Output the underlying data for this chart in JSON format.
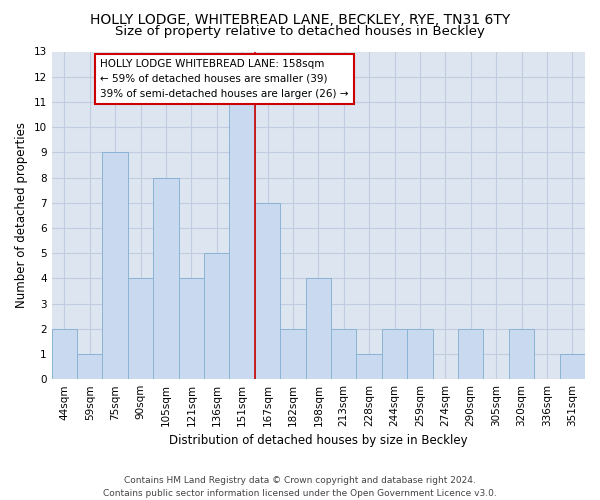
{
  "title": "HOLLY LODGE, WHITEBREAD LANE, BECKLEY, RYE, TN31 6TY",
  "subtitle": "Size of property relative to detached houses in Beckley",
  "xlabel": "Distribution of detached houses by size in Beckley",
  "ylabel": "Number of detached properties",
  "categories": [
    "44sqm",
    "59sqm",
    "75sqm",
    "90sqm",
    "105sqm",
    "121sqm",
    "136sqm",
    "151sqm",
    "167sqm",
    "182sqm",
    "198sqm",
    "213sqm",
    "228sqm",
    "244sqm",
    "259sqm",
    "274sqm",
    "290sqm",
    "305sqm",
    "320sqm",
    "336sqm",
    "351sqm"
  ],
  "values": [
    2,
    1,
    9,
    4,
    8,
    4,
    5,
    11,
    7,
    2,
    4,
    2,
    1,
    2,
    2,
    0,
    2,
    0,
    2,
    0,
    1
  ],
  "bar_color": "#c9d9f0",
  "bar_edge_color": "#8ab4d4",
  "vline_index": 7,
  "annotation_title": "HOLLY LODGE WHITEBREAD LANE: 158sqm",
  "annotation_line1": "← 59% of detached houses are smaller (39)",
  "annotation_line2": "39% of semi-detached houses are larger (26) →",
  "annotation_box_facecolor": "#ffffff",
  "annotation_box_edgecolor": "#cc0000",
  "vline_color": "#cc0000",
  "ylim": [
    0,
    13
  ],
  "yticks": [
    0,
    1,
    2,
    3,
    4,
    5,
    6,
    7,
    8,
    9,
    10,
    11,
    12,
    13
  ],
  "footer_line1": "Contains HM Land Registry data © Crown copyright and database right 2024.",
  "footer_line2": "Contains public sector information licensed under the Open Government Licence v3.0.",
  "grid_color": "#c0cce0",
  "background_color": "#dde5f0",
  "title_fontsize": 10,
  "subtitle_fontsize": 9.5,
  "ylabel_fontsize": 8.5,
  "xlabel_fontsize": 8.5,
  "tick_fontsize": 7.5,
  "annotation_fontsize": 7.5,
  "footer_fontsize": 6.5
}
